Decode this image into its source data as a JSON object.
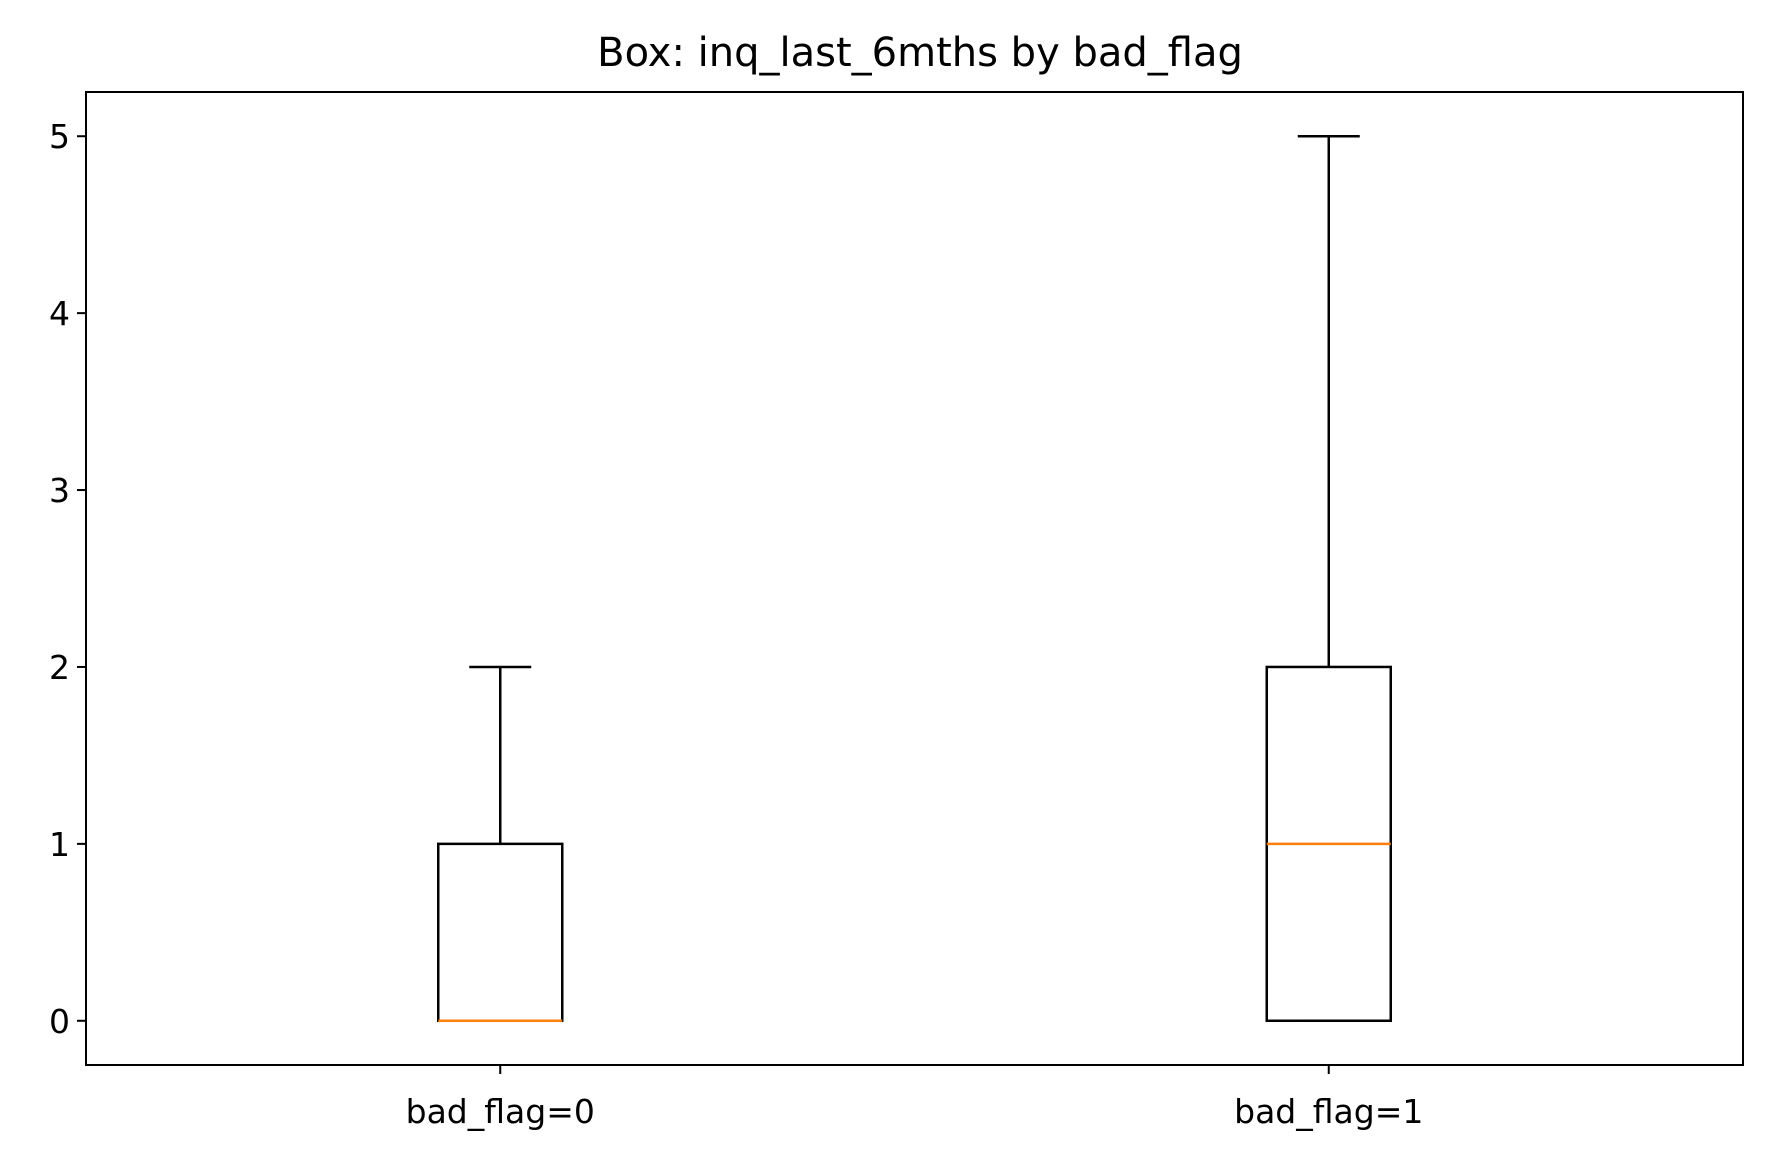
{
  "chart_data": {
    "type": "box",
    "title": "Box: inq_last_6mths by bad_flag",
    "xlabel": "",
    "ylabel": "",
    "categories": [
      "bad_flag=0",
      "bad_flag=1"
    ],
    "boxes": [
      {
        "category": "bad_flag=0",
        "whisker_low": 0,
        "q1": 0,
        "median": 0,
        "q3": 1,
        "whisker_high": 2
      },
      {
        "category": "bad_flag=1",
        "whisker_low": 0,
        "q1": 0,
        "median": 1,
        "q3": 2,
        "whisker_high": 5
      }
    ],
    "ylim": [
      -0.25,
      5.25
    ],
    "yticks": [
      0,
      1,
      2,
      3,
      4,
      5
    ],
    "grid": false,
    "colors": {
      "box": "#000000",
      "median": "#ff7f0e",
      "axes": "#000000",
      "background": "#ffffff"
    }
  }
}
